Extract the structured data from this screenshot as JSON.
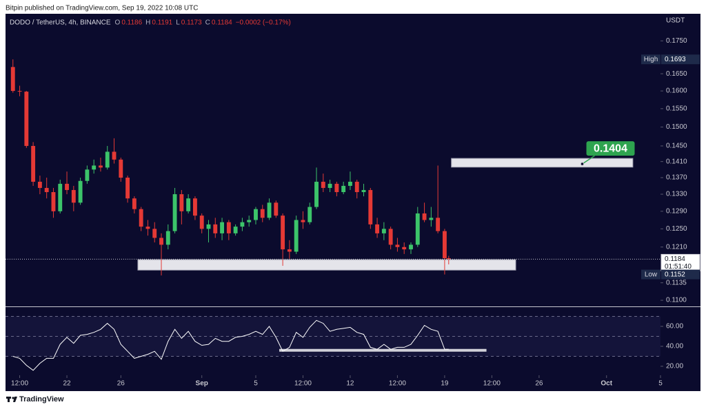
{
  "header": {
    "publisher": "Bitpin published on TradingView.com, Sep 19, 2022 10:08 UTC"
  },
  "chart_data": [
    {
      "type": "candlestick",
      "title": "DODO / TetherUS, 4h, BINANCE",
      "ohlc": [
        {
          "label": "O",
          "value": 0.1186
        },
        {
          "label": "H",
          "value": 0.1191
        },
        {
          "label": "L",
          "value": 0.1173
        },
        {
          "label": "C",
          "value": 0.1184
        }
      ],
      "change": "−0.0002 (−0.17%)",
      "axis_title": "USDT",
      "log_scale": true,
      "up_color": "#3cc46a",
      "down_color": "#e53935",
      "xlim": [
        16.45,
        65
      ],
      "ylim": [
        0.1088,
        0.1837
      ],
      "xticks": [
        {
          "value": 17.5,
          "label": "12:00"
        },
        {
          "value": 21,
          "label": "22"
        },
        {
          "value": 25,
          "label": "26"
        },
        {
          "value": 31,
          "label": "Sep"
        },
        {
          "value": 35,
          "label": "5"
        },
        {
          "value": 38.5,
          "label": "12:00"
        },
        {
          "value": 42,
          "label": "12"
        },
        {
          "value": 45.5,
          "label": "12:00"
        },
        {
          "value": 49,
          "label": "19"
        },
        {
          "value": 52.5,
          "label": "12:00"
        },
        {
          "value": 56,
          "label": "26"
        },
        {
          "value": 61,
          "label": "Oct"
        },
        {
          "value": 65,
          "label": "5"
        }
      ],
      "yticks": [
        {
          "value": 0.11,
          "label": "0.1100"
        },
        0.1135,
        {
          "value": 0.121,
          "label": "0.1210"
        },
        {
          "value": 0.125,
          "label": "0.1250"
        },
        {
          "value": 0.129,
          "label": "0.1290"
        },
        {
          "value": 0.133,
          "label": "0.1330"
        },
        {
          "value": 0.137,
          "label": "0.1370"
        },
        {
          "value": 0.141,
          "label": "0.1410"
        },
        {
          "value": 0.145,
          "label": "0.1450"
        },
        {
          "value": 0.15,
          "label": "0.1500"
        },
        {
          "value": 0.155,
          "label": "0.1550"
        },
        {
          "value": 0.16,
          "label": "0.1600"
        },
        {
          "value": 0.165,
          "label": "0.1650"
        },
        {
          "value": 0.175,
          "label": "0.1750"
        }
      ],
      "x": [
        17,
        17.5,
        18,
        18.5,
        19,
        19.5,
        20,
        20.5,
        21,
        21.5,
        22,
        22.5,
        23,
        23.5,
        24,
        24.5,
        25,
        25.5,
        26,
        26.5,
        27,
        27.5,
        28,
        28.5,
        29,
        29.5,
        30,
        30.5,
        31,
        31.5,
        32,
        32.5,
        33,
        33.5,
        34,
        34.5,
        35,
        35.5,
        36,
        36.5,
        37,
        37.5,
        38,
        38.5,
        39,
        39.5,
        40,
        40.5,
        41,
        41.5,
        42,
        42.5,
        43,
        43.5,
        44,
        44.5,
        45,
        45.5,
        46,
        46.5,
        47,
        47.5,
        48,
        48.5,
        49,
        49.3
      ],
      "open": [
        0.167,
        0.16,
        0.1598,
        0.145,
        0.136,
        0.1345,
        0.1335,
        0.129,
        0.1355,
        0.134,
        0.131,
        0.1362,
        0.139,
        0.14,
        0.1395,
        0.1435,
        0.1415,
        0.137,
        0.132,
        0.1295,
        0.1255,
        0.125,
        0.123,
        0.1215,
        0.1245,
        0.133,
        0.129,
        0.132,
        0.128,
        0.125,
        0.126,
        0.124,
        0.1265,
        0.124,
        0.1255,
        0.1265,
        0.127,
        0.1295,
        0.1275,
        0.131,
        0.128,
        0.1205,
        0.12,
        0.127,
        0.1265,
        0.13,
        0.136,
        0.1345,
        0.1355,
        0.1335,
        0.135,
        0.136,
        0.1335,
        0.134,
        0.126,
        0.124,
        0.125,
        0.1215,
        0.121,
        0.1205,
        0.1215,
        0.1285,
        0.127,
        0.1275,
        0.1245,
        0.1186
      ],
      "high": [
        0.1693,
        0.1615,
        0.16,
        0.146,
        0.1375,
        0.137,
        0.1345,
        0.1365,
        0.1385,
        0.135,
        0.137,
        0.14,
        0.1415,
        0.142,
        0.145,
        0.147,
        0.142,
        0.1375,
        0.1325,
        0.13,
        0.127,
        0.1265,
        0.124,
        0.126,
        0.1345,
        0.134,
        0.133,
        0.1325,
        0.1285,
        0.127,
        0.1275,
        0.1275,
        0.127,
        0.126,
        0.1275,
        0.128,
        0.13,
        0.1305,
        0.132,
        0.1315,
        0.1285,
        0.1225,
        0.128,
        0.129,
        0.131,
        0.1395,
        0.138,
        0.1365,
        0.136,
        0.136,
        0.1385,
        0.1365,
        0.1355,
        0.1345,
        0.1275,
        0.1265,
        0.1255,
        0.123,
        0.122,
        0.122,
        0.13,
        0.131,
        0.13,
        0.14,
        0.125,
        0.1191
      ],
      "low": [
        0.1595,
        0.1585,
        0.1445,
        0.135,
        0.133,
        0.132,
        0.1275,
        0.1285,
        0.133,
        0.129,
        0.1305,
        0.1355,
        0.138,
        0.1385,
        0.139,
        0.1405,
        0.136,
        0.131,
        0.1285,
        0.1245,
        0.1235,
        0.122,
        0.115,
        0.1205,
        0.124,
        0.126,
        0.1285,
        0.127,
        0.124,
        0.122,
        0.123,
        0.1225,
        0.1225,
        0.1235,
        0.1245,
        0.1255,
        0.126,
        0.1265,
        0.127,
        0.1275,
        0.117,
        0.1185,
        0.1195,
        0.125,
        0.126,
        0.1295,
        0.1335,
        0.1335,
        0.1325,
        0.133,
        0.134,
        0.132,
        0.1325,
        0.125,
        0.123,
        0.1225,
        0.1205,
        0.12,
        0.1195,
        0.1195,
        0.121,
        0.1265,
        0.1255,
        0.124,
        0.1152,
        0.1173
      ],
      "close": [
        0.16,
        0.1598,
        0.145,
        0.136,
        0.1345,
        0.1335,
        0.129,
        0.1355,
        0.134,
        0.131,
        0.1362,
        0.139,
        0.14,
        0.1395,
        0.1435,
        0.1415,
        0.137,
        0.132,
        0.1295,
        0.1255,
        0.125,
        0.123,
        0.1215,
        0.1245,
        0.133,
        0.129,
        0.132,
        0.128,
        0.125,
        0.126,
        0.124,
        0.1265,
        0.124,
        0.1255,
        0.1265,
        0.127,
        0.1295,
        0.1275,
        0.131,
        0.128,
        0.1205,
        0.12,
        0.127,
        0.1265,
        0.13,
        0.136,
        0.1345,
        0.1355,
        0.1335,
        0.135,
        0.136,
        0.1335,
        0.134,
        0.126,
        0.124,
        0.125,
        0.1215,
        0.121,
        0.1205,
        0.1215,
        0.1285,
        0.127,
        0.1275,
        0.1245,
        0.1186,
        0.1184
      ],
      "high_marker": {
        "label": "High",
        "value": 0.1693
      },
      "low_marker": {
        "label": "Low",
        "value": 0.1152
      },
      "last_price": {
        "value": 0.1184,
        "countdown": "01:51:40"
      },
      "zones": [
        {
          "x": [
            49.5,
            62.95
          ],
          "y": [
            0.1396,
            0.1418
          ]
        },
        {
          "x": [
            26.26,
            54.27
          ],
          "y": [
            0.1161,
            0.1183
          ]
        }
      ],
      "callout": {
        "x": 59.2,
        "value": 0.1404
      }
    },
    {
      "type": "line",
      "xlim": [
        16.45,
        65
      ],
      "ylim": [
        11,
        79.3
      ],
      "yticks": [
        {
          "value": 60,
          "label": "60.00"
        },
        {
          "value": 40,
          "label": "40.00"
        },
        {
          "value": 20,
          "label": "20.00"
        }
      ],
      "levels": [
        70,
        50,
        30
      ],
      "x": [
        17,
        17.5,
        18,
        18.5,
        19,
        19.5,
        20,
        20.5,
        21,
        21.5,
        22,
        22.5,
        23,
        23.5,
        24,
        24.5,
        25,
        25.5,
        26,
        26.5,
        27,
        27.5,
        28,
        28.5,
        29,
        29.5,
        30,
        30.5,
        31,
        31.5,
        32,
        32.5,
        33,
        33.5,
        34,
        34.5,
        35,
        35.5,
        36,
        36.5,
        37,
        37.5,
        38,
        38.5,
        39,
        39.5,
        40,
        40.5,
        41,
        41.5,
        42,
        42.5,
        43,
        43.5,
        44,
        44.5,
        45,
        45.5,
        46,
        46.5,
        47,
        47.5,
        48,
        48.5,
        49,
        49.3
      ],
      "series": [
        {
          "color": "#ffffff",
          "values": [
            30,
            28,
            21,
            16,
            23,
            28,
            28,
            42,
            49,
            43,
            51,
            52,
            54,
            57,
            63,
            57,
            42,
            35,
            28,
            30,
            32,
            35,
            27,
            45,
            57,
            48,
            55,
            45,
            41,
            42,
            48,
            45,
            45,
            49,
            50,
            52,
            55,
            52,
            60,
            49,
            35,
            39,
            54,
            49,
            59,
            66,
            63,
            55,
            57,
            58,
            59,
            54,
            52,
            39,
            37,
            42,
            37,
            39,
            39,
            42,
            51,
            61,
            57,
            55,
            37,
            37
          ]
        }
      ],
      "support": {
        "x": [
          36.74,
          52.1
        ],
        "value": 36
      }
    }
  ],
  "footer": {
    "brand": "TradingView"
  }
}
